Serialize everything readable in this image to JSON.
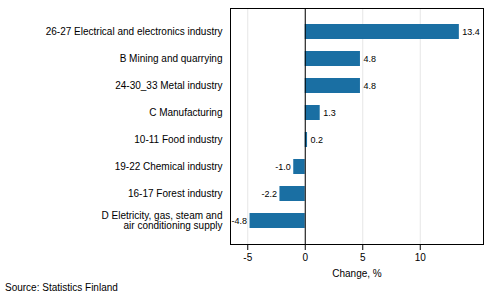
{
  "chart_data": {
    "type": "bar",
    "orientation": "horizontal",
    "categories": [
      "D Eletricity, gas, steam and\nair conditioning supply",
      "16-17 Forest industry",
      "19-22 Chemical industry",
      "10-11 Food industry",
      "C Manufacturing",
      "24-30_33 Metal industry",
      "B Mining and quarrying",
      "26-27 Electrical and electronics industry"
    ],
    "values": [
      -4.8,
      -2.2,
      -1.0,
      0.2,
      1.3,
      4.8,
      4.8,
      13.4
    ],
    "value_labels": [
      "-4.8",
      "-2.2",
      "-1.0",
      "0.2",
      "1.3",
      "4.8",
      "4.8",
      "13.4"
    ],
    "data_labels": true,
    "color": "#1a6fa3",
    "xlim": [
      -6.5,
      15.5
    ],
    "xticks": [
      -5,
      0,
      5,
      10
    ],
    "xlabel": "Change, %",
    "grid": true,
    "annotations": [
      "Source: Statistics Finland"
    ]
  }
}
